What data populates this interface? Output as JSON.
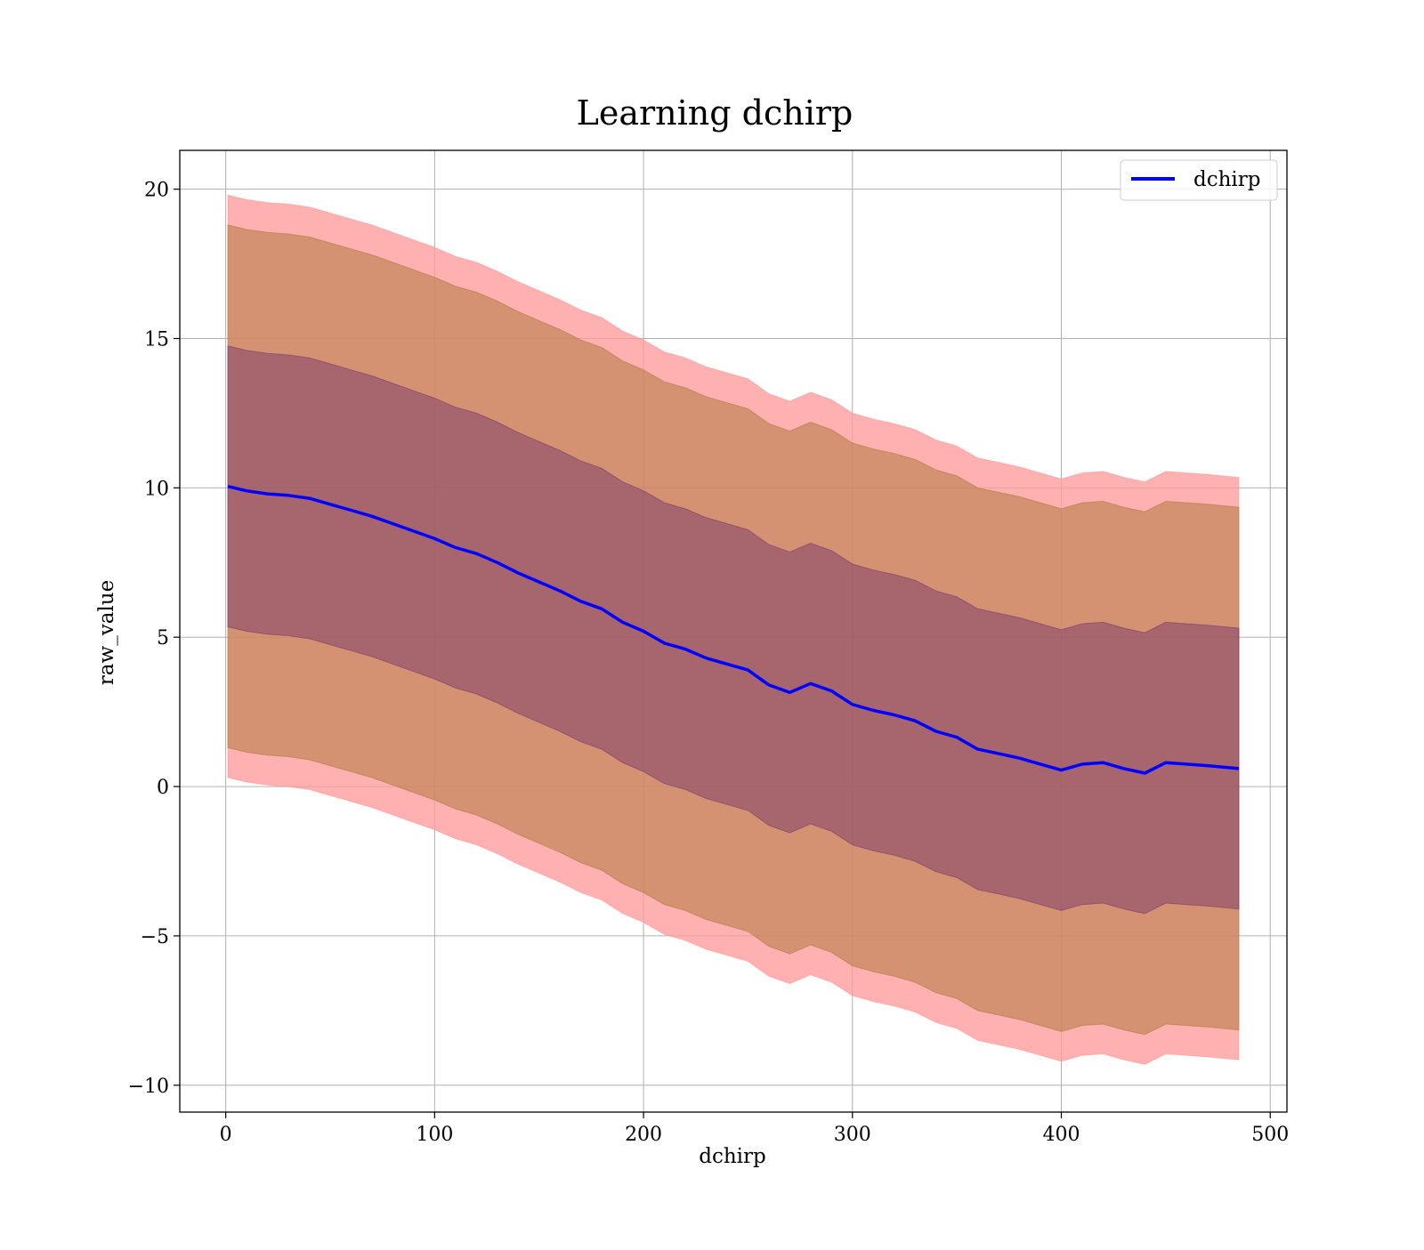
{
  "chart_data": {
    "type": "line",
    "title": "Learning dchirp",
    "xlabel": "dchirp",
    "ylabel": "raw_value",
    "xlim": [
      -22,
      508
    ],
    "ylim": [
      -10.9,
      21.3
    ],
    "xticks": [
      0,
      100,
      200,
      300,
      400,
      500
    ],
    "xtick_labels": [
      "0",
      "100",
      "200",
      "300",
      "400",
      "500"
    ],
    "yticks": [
      -10,
      -5,
      0,
      5,
      10,
      15,
      20
    ],
    "ytick_labels": [
      "−10",
      "−5",
      "0",
      "5",
      "10",
      "15",
      "20"
    ],
    "grid": true,
    "legend": {
      "position": "top-right",
      "entries": [
        "dchirp"
      ]
    },
    "colors": {
      "line": "#0000ff",
      "band_outer": "#ff9a9a",
      "band_middle": "#b07a3f",
      "band_inner": "#7a3a6a",
      "grid": "#b0b0b0"
    },
    "series": [
      {
        "name": "dchirp",
        "x": [
          1,
          10,
          20,
          30,
          40,
          50,
          60,
          70,
          80,
          90,
          100,
          110,
          120,
          130,
          140,
          150,
          160,
          170,
          180,
          190,
          200,
          210,
          220,
          230,
          240,
          250,
          260,
          270,
          280,
          290,
          300,
          310,
          320,
          330,
          340,
          350,
          360,
          370,
          380,
          390,
          400,
          410,
          420,
          430,
          440,
          450,
          460,
          470,
          485
        ],
        "y": [
          10.05,
          9.9,
          9.8,
          9.75,
          9.65,
          9.45,
          9.25,
          9.05,
          8.8,
          8.55,
          8.3,
          8.0,
          7.8,
          7.5,
          7.15,
          6.85,
          6.55,
          6.2,
          5.95,
          5.5,
          5.2,
          4.8,
          4.6,
          4.3,
          4.1,
          3.9,
          3.4,
          3.15,
          3.45,
          3.2,
          2.75,
          2.55,
          2.4,
          2.2,
          1.85,
          1.65,
          1.25,
          1.1,
          0.95,
          0.75,
          0.55,
          0.75,
          0.8,
          0.6,
          0.45,
          0.8,
          0.75,
          0.7,
          0.6
        ]
      }
    ],
    "bands": [
      {
        "name": "outer",
        "upper_offset": 9.75,
        "lower_offset": 9.75
      },
      {
        "name": "middle",
        "upper_offset": 8.75,
        "lower_offset": 8.75
      },
      {
        "name": "inner",
        "upper_offset": 4.7,
        "lower_offset": 4.7
      }
    ]
  }
}
